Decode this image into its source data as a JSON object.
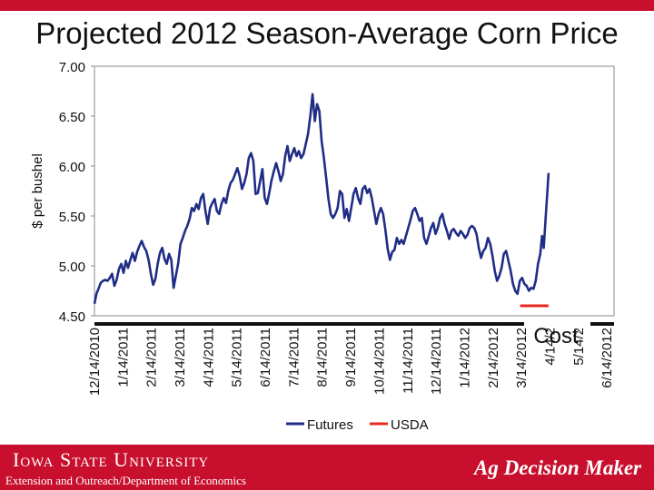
{
  "chart_data": {
    "type": "line",
    "title": "Projected 2012 Season-Average Corn Price",
    "ylabel": "$ per bushel",
    "ylim": [
      4.5,
      7.0
    ],
    "y_ticks": [
      "4.50",
      "5.00",
      "5.50",
      "6.00",
      "6.50",
      "7.00"
    ],
    "x_ticks": [
      "12/14/2010",
      "1/14/2011",
      "2/14/2011",
      "3/14/2011",
      "4/14/2011",
      "5/14/2011",
      "6/14/2011",
      "7/14/2011",
      "8/14/2011",
      "9/14/2011",
      "10/14/2011",
      "11/14/2011",
      "12/14/2011",
      "1/14/2012",
      "2/14/2012",
      "3/14/2012",
      "4/14/2",
      "5/14/2",
      "6/14/2012"
    ],
    "annotations": [
      "Cost"
    ],
    "legend_position": "bottom",
    "series": [
      {
        "name": "Futures",
        "color": "#1f2d86",
        "points": [
          [
            0,
            4.62
          ],
          [
            0.07,
            4.72
          ],
          [
            0.14,
            4.77
          ],
          [
            0.22,
            4.83
          ],
          [
            0.3,
            4.85
          ],
          [
            0.38,
            4.86
          ],
          [
            0.46,
            4.85
          ],
          [
            0.54,
            4.88
          ],
          [
            0.62,
            4.92
          ],
          [
            0.7,
            4.8
          ],
          [
            0.78,
            4.86
          ],
          [
            0.86,
            4.97
          ],
          [
            0.94,
            5.02
          ],
          [
            1.02,
            4.93
          ],
          [
            1.1,
            5.05
          ],
          [
            1.18,
            4.98
          ],
          [
            1.26,
            5.06
          ],
          [
            1.34,
            5.13
          ],
          [
            1.42,
            5.05
          ],
          [
            1.5,
            5.14
          ],
          [
            1.58,
            5.2
          ],
          [
            1.66,
            5.25
          ],
          [
            1.74,
            5.19
          ],
          [
            1.82,
            5.15
          ],
          [
            1.9,
            5.06
          ],
          [
            1.98,
            4.92
          ],
          [
            2.06,
            4.81
          ],
          [
            2.14,
            4.87
          ],
          [
            2.22,
            5.02
          ],
          [
            2.3,
            5.13
          ],
          [
            2.38,
            5.18
          ],
          [
            2.46,
            5.07
          ],
          [
            2.54,
            5.02
          ],
          [
            2.62,
            5.12
          ],
          [
            2.7,
            5.06
          ],
          [
            2.78,
            4.78
          ],
          [
            2.86,
            4.9
          ],
          [
            2.94,
            5.02
          ],
          [
            3.02,
            5.22
          ],
          [
            3.1,
            5.28
          ],
          [
            3.18,
            5.35
          ],
          [
            3.26,
            5.4
          ],
          [
            3.34,
            5.47
          ],
          [
            3.42,
            5.58
          ],
          [
            3.5,
            5.55
          ],
          [
            3.58,
            5.62
          ],
          [
            3.66,
            5.57
          ],
          [
            3.74,
            5.68
          ],
          [
            3.82,
            5.72
          ],
          [
            3.9,
            5.55
          ],
          [
            3.98,
            5.42
          ],
          [
            4.06,
            5.58
          ],
          [
            4.14,
            5.63
          ],
          [
            4.22,
            5.67
          ],
          [
            4.3,
            5.55
          ],
          [
            4.38,
            5.52
          ],
          [
            4.46,
            5.62
          ],
          [
            4.54,
            5.68
          ],
          [
            4.62,
            5.63
          ],
          [
            4.7,
            5.75
          ],
          [
            4.78,
            5.83
          ],
          [
            4.86,
            5.86
          ],
          [
            4.94,
            5.92
          ],
          [
            5.02,
            5.98
          ],
          [
            5.1,
            5.9
          ],
          [
            5.18,
            5.77
          ],
          [
            5.26,
            5.83
          ],
          [
            5.34,
            5.92
          ],
          [
            5.42,
            6.08
          ],
          [
            5.5,
            6.13
          ],
          [
            5.58,
            6.05
          ],
          [
            5.66,
            5.72
          ],
          [
            5.74,
            5.73
          ],
          [
            5.82,
            5.85
          ],
          [
            5.9,
            5.97
          ],
          [
            5.98,
            5.68
          ],
          [
            6.06,
            5.62
          ],
          [
            6.14,
            5.73
          ],
          [
            6.22,
            5.86
          ],
          [
            6.3,
            5.95
          ],
          [
            6.38,
            6.03
          ],
          [
            6.46,
            5.95
          ],
          [
            6.54,
            5.85
          ],
          [
            6.62,
            5.92
          ],
          [
            6.7,
            6.1
          ],
          [
            6.78,
            6.2
          ],
          [
            6.86,
            6.05
          ],
          [
            6.94,
            6.12
          ],
          [
            7.02,
            6.18
          ],
          [
            7.1,
            6.1
          ],
          [
            7.18,
            6.15
          ],
          [
            7.26,
            6.08
          ],
          [
            7.34,
            6.12
          ],
          [
            7.42,
            6.22
          ],
          [
            7.5,
            6.32
          ],
          [
            7.58,
            6.5
          ],
          [
            7.66,
            6.72
          ],
          [
            7.74,
            6.45
          ],
          [
            7.82,
            6.62
          ],
          [
            7.9,
            6.55
          ],
          [
            7.98,
            6.25
          ],
          [
            8.06,
            6.08
          ],
          [
            8.14,
            5.88
          ],
          [
            8.22,
            5.67
          ],
          [
            8.3,
            5.52
          ],
          [
            8.38,
            5.48
          ],
          [
            8.46,
            5.52
          ],
          [
            8.54,
            5.58
          ],
          [
            8.62,
            5.75
          ],
          [
            8.7,
            5.72
          ],
          [
            8.78,
            5.48
          ],
          [
            8.86,
            5.57
          ],
          [
            8.94,
            5.45
          ],
          [
            9.02,
            5.58
          ],
          [
            9.1,
            5.72
          ],
          [
            9.18,
            5.78
          ],
          [
            9.26,
            5.68
          ],
          [
            9.34,
            5.62
          ],
          [
            9.42,
            5.77
          ],
          [
            9.5,
            5.8
          ],
          [
            9.58,
            5.73
          ],
          [
            9.66,
            5.77
          ],
          [
            9.74,
            5.68
          ],
          [
            9.82,
            5.55
          ],
          [
            9.9,
            5.42
          ],
          [
            9.98,
            5.52
          ],
          [
            10.06,
            5.58
          ],
          [
            10.14,
            5.52
          ],
          [
            10.22,
            5.36
          ],
          [
            10.3,
            5.17
          ],
          [
            10.38,
            5.06
          ],
          [
            10.46,
            5.14
          ],
          [
            10.54,
            5.16
          ],
          [
            10.62,
            5.28
          ],
          [
            10.7,
            5.22
          ],
          [
            10.78,
            5.26
          ],
          [
            10.86,
            5.22
          ],
          [
            10.94,
            5.3
          ],
          [
            11.02,
            5.38
          ],
          [
            11.1,
            5.46
          ],
          [
            11.18,
            5.55
          ],
          [
            11.26,
            5.58
          ],
          [
            11.34,
            5.52
          ],
          [
            11.42,
            5.45
          ],
          [
            11.5,
            5.48
          ],
          [
            11.58,
            5.28
          ],
          [
            11.66,
            5.22
          ],
          [
            11.74,
            5.3
          ],
          [
            11.82,
            5.38
          ],
          [
            11.9,
            5.43
          ],
          [
            11.98,
            5.32
          ],
          [
            12.06,
            5.38
          ],
          [
            12.14,
            5.48
          ],
          [
            12.22,
            5.52
          ],
          [
            12.3,
            5.42
          ],
          [
            12.38,
            5.35
          ],
          [
            12.46,
            5.27
          ],
          [
            12.54,
            5.35
          ],
          [
            12.62,
            5.37
          ],
          [
            12.7,
            5.33
          ],
          [
            12.78,
            5.3
          ],
          [
            12.86,
            5.35
          ],
          [
            12.94,
            5.32
          ],
          [
            13.02,
            5.28
          ],
          [
            13.1,
            5.31
          ],
          [
            13.18,
            5.38
          ],
          [
            13.26,
            5.4
          ],
          [
            13.34,
            5.38
          ],
          [
            13.42,
            5.32
          ],
          [
            13.5,
            5.18
          ],
          [
            13.58,
            5.08
          ],
          [
            13.66,
            5.15
          ],
          [
            13.74,
            5.18
          ],
          [
            13.82,
            5.28
          ],
          [
            13.9,
            5.22
          ],
          [
            13.98,
            5.1
          ],
          [
            14.06,
            4.95
          ],
          [
            14.14,
            4.85
          ],
          [
            14.22,
            4.9
          ],
          [
            14.3,
            4.98
          ],
          [
            14.38,
            5.12
          ],
          [
            14.46,
            5.15
          ],
          [
            14.54,
            5.05
          ],
          [
            14.62,
            4.95
          ],
          [
            14.7,
            4.82
          ],
          [
            14.78,
            4.75
          ],
          [
            14.86,
            4.72
          ],
          [
            14.94,
            4.85
          ],
          [
            15.02,
            4.88
          ],
          [
            15.1,
            4.82
          ],
          [
            15.18,
            4.8
          ],
          [
            15.26,
            4.75
          ],
          [
            15.34,
            4.78
          ],
          [
            15.42,
            4.77
          ],
          [
            15.5,
            4.85
          ],
          [
            15.58,
            5.02
          ],
          [
            15.66,
            5.12
          ],
          [
            15.72,
            5.3
          ],
          [
            15.78,
            5.18
          ],
          [
            15.84,
            5.45
          ],
          [
            15.9,
            5.7
          ],
          [
            15.95,
            5.93
          ]
        ]
      },
      {
        "name": "USDA",
        "color": "#e8281e",
        "points": [
          [
            14.95,
            4.6
          ],
          [
            15.95,
            4.6
          ]
        ]
      }
    ]
  },
  "footer": {
    "logo": "Iowa State University",
    "sub": "Extension and Outreach/Department of Economics",
    "brand": "Ag Decision Maker"
  }
}
